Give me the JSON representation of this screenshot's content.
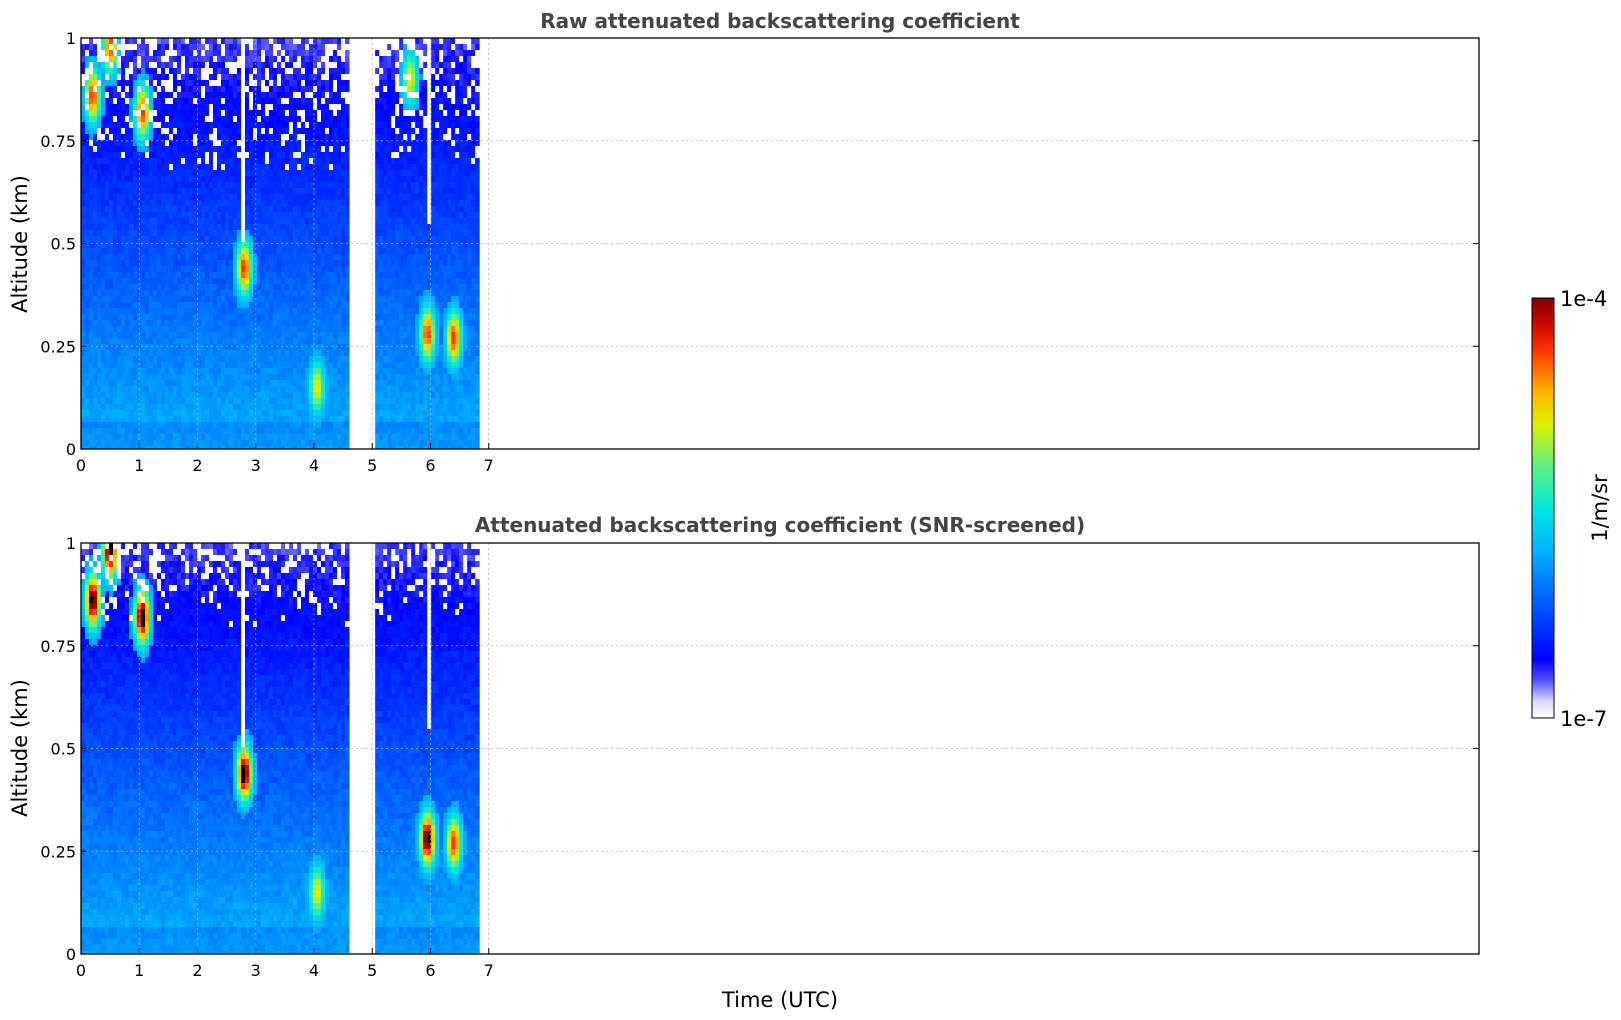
{
  "chart_data": [
    {
      "type": "heatmap",
      "title": "Raw attenuated backscattering coefficient",
      "ylabel": "Altitude (km)",
      "xlabel": "",
      "xlim": [
        0,
        24
      ],
      "ylim": [
        0,
        1
      ],
      "x_ticks": [
        "0",
        "1",
        "2",
        "3",
        "4",
        "5",
        "6",
        "7"
      ],
      "y_ticks": [
        "0",
        "0.25",
        "0.5",
        "0.75",
        "1"
      ],
      "grid": true,
      "data_segments": [
        [
          0,
          4.6
        ],
        [
          5.05,
          6.8
        ]
      ],
      "features": [
        {
          "x": 0.2,
          "y": 0.86,
          "level": "high"
        },
        {
          "x": 0.5,
          "y": 0.98,
          "level": "high"
        },
        {
          "x": 1.05,
          "y": 0.82,
          "level": "high"
        },
        {
          "x": 2.8,
          "y": 0.44,
          "level": "high"
        },
        {
          "x": 4.05,
          "y": 0.15,
          "level": "medium"
        },
        {
          "x": 5.95,
          "y": 0.28,
          "level": "high"
        },
        {
          "x": 6.4,
          "y": 0.27,
          "level": "high"
        },
        {
          "x": 5.65,
          "y": 0.9,
          "level": "medium"
        }
      ]
    },
    {
      "type": "heatmap",
      "title": "Attenuated backscattering coefficient (SNR-screened)",
      "ylabel": "Altitude (km)",
      "xlabel": "Time (UTC)",
      "xlim": [
        0,
        24
      ],
      "ylim": [
        0,
        1
      ],
      "x_ticks": [
        "0",
        "1",
        "2",
        "3",
        "4",
        "5",
        "6",
        "7"
      ],
      "y_ticks": [
        "0",
        "0.25",
        "0.5",
        "0.75",
        "1"
      ],
      "grid": true,
      "data_segments": [
        [
          0,
          4.6
        ],
        [
          5.05,
          6.8
        ]
      ],
      "features": [
        {
          "x": 0.2,
          "y": 0.86,
          "level": "saturated"
        },
        {
          "x": 0.5,
          "y": 0.98,
          "level": "saturated"
        },
        {
          "x": 1.05,
          "y": 0.82,
          "level": "saturated"
        },
        {
          "x": 2.8,
          "y": 0.44,
          "level": "saturated"
        },
        {
          "x": 4.05,
          "y": 0.15,
          "level": "medium"
        },
        {
          "x": 5.95,
          "y": 0.28,
          "level": "saturated"
        },
        {
          "x": 6.4,
          "y": 0.27,
          "level": "high"
        }
      ]
    }
  ],
  "colorbar": {
    "max_label": "1e-4",
    "min_label": "1e-7",
    "unit_label": "1/m/sr",
    "colormap": "jet"
  }
}
